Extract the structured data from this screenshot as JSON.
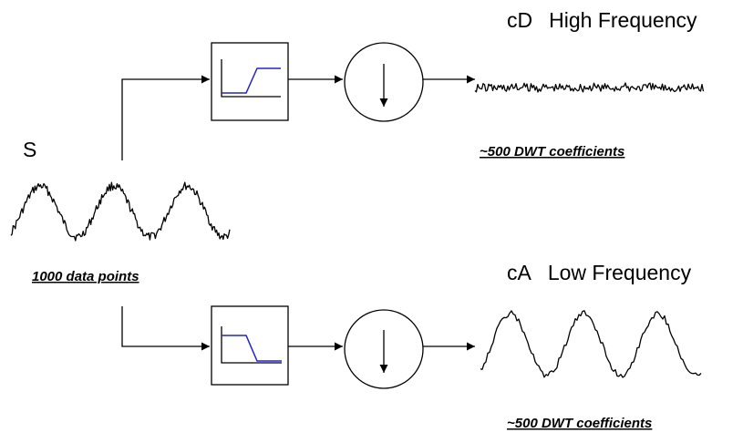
{
  "input": {
    "symbol": "S",
    "caption": "1000 data points"
  },
  "high_branch": {
    "name": "cD",
    "description": "High Frequency",
    "caption": "~500 DWT coefficients",
    "filter_icon": "high-pass-filter-icon",
    "downsample_icon": "downsample-arrow-icon"
  },
  "low_branch": {
    "name": "cA",
    "description": "Low Frequency",
    "caption": "~500 DWT coefficients",
    "filter_icon": "low-pass-filter-icon",
    "downsample_icon": "downsample-arrow-icon"
  },
  "colors": {
    "line": "#000000",
    "filter_response": "#2323c8",
    "background": "#ffffff"
  }
}
